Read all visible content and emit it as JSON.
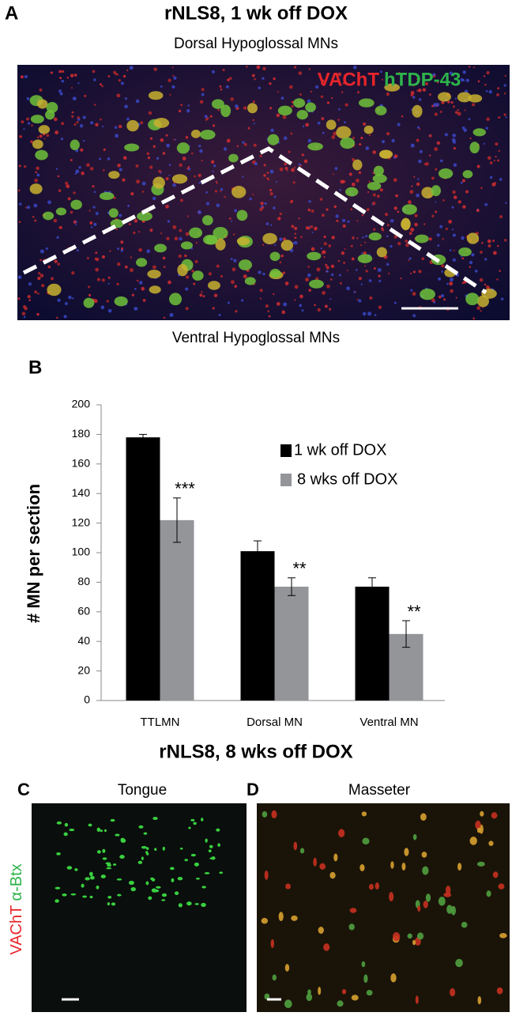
{
  "panel_a": {
    "label": "A",
    "title": "rNLS8, 1 wk off DOX",
    "top_label": "Dorsal Hypoglossal MNs",
    "bottom_label": "Ventral Hypoglossal MNs",
    "stains": [
      {
        "name": "VAChT",
        "color": "#e8252a"
      },
      {
        "name": "hTDP-43",
        "color": "#2db34a"
      }
    ]
  },
  "chart_data": {
    "type": "bar",
    "panel_label": "B",
    "y_label": "# MN per section",
    "categories": [
      "TTLMN",
      "Dorsal MN",
      "Ventral MN"
    ],
    "series": [
      {
        "name": "1 wk off DOX",
        "color": "#000000",
        "values": [
          178,
          101,
          77
        ],
        "errors": [
          2,
          7,
          6
        ]
      },
      {
        "name": "8 wks off DOX",
        "color": "#939598",
        "values": [
          122,
          77,
          45
        ],
        "errors": [
          15,
          6,
          9
        ],
        "significance": [
          "***",
          "**",
          "**"
        ]
      }
    ],
    "ylim": [
      0,
      200
    ],
    "yticks": [
      0,
      20,
      40,
      60,
      80,
      100,
      120,
      140,
      160,
      180,
      200
    ],
    "grid": false
  },
  "panels_cd": {
    "title": "rNLS8, 8 wks off DOX",
    "stains": [
      {
        "name": "VAChT",
        "color": "#e8252a"
      },
      {
        "name": "α-Btx",
        "color": "#2db34a"
      }
    ],
    "panels": [
      {
        "label": "C",
        "title": "Tongue"
      },
      {
        "label": "D",
        "title": "Masseter"
      }
    ]
  }
}
